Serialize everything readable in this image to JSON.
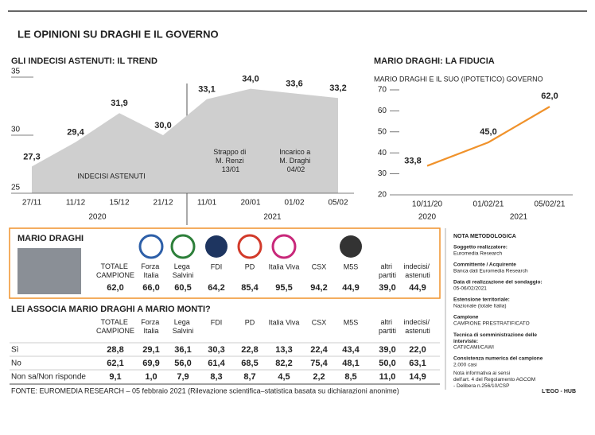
{
  "header": {
    "title": "LE OPINIONI SU DRAGHI E IL GOVERNO"
  },
  "chart_data": [
    {
      "type": "area",
      "title": "GLI INDECISI ASTENUTI: IL TREND",
      "categories": [
        "27/11",
        "11/12",
        "15/12",
        "21/12",
        "11/01",
        "20/01",
        "01/02",
        "05/02"
      ],
      "values": [
        27.3,
        29.4,
        31.9,
        30.0,
        33.1,
        34.0,
        33.6,
        33.2
      ],
      "value_labels": [
        "27,3",
        "29,4",
        "31,9",
        "30,0",
        "33,1",
        "34,0",
        "33,6",
        "33,2"
      ],
      "ylim": [
        25,
        35
      ],
      "yticks": [
        25,
        30,
        35
      ],
      "color": "#cfcfcf",
      "year_labels": [
        "2020",
        "2021"
      ],
      "annotations": [
        "INDECISI ASTENUTI",
        "Strappo di M. Renzi 13/01",
        "Incarico a M. Draghi 04/02"
      ]
    },
    {
      "type": "line",
      "title": "MARIO DRAGHI: LA FIDUCIA",
      "subtitle": "MARIO DRAGHI E IL SUO (IPOTETICO) GOVERNO",
      "categories": [
        "10/11/20",
        "01/02/21",
        "05/02/21"
      ],
      "values": [
        33.8,
        45.0,
        62.0
      ],
      "value_labels": [
        "33,8",
        "45,0",
        "62,0"
      ],
      "ylim": [
        20,
        70
      ],
      "yticks": [
        20,
        30,
        40,
        50,
        60,
        70
      ],
      "color": "#f0922b",
      "year_labels": [
        "2020",
        "2021"
      ]
    }
  ],
  "fiducia": {
    "name": "MARIO DRAGHI",
    "columns": [
      "TOTALE CAMPIONE",
      "Forza Italia",
      "Lega Salvini",
      "FDI",
      "PD",
      "Italia Viva",
      "CSX",
      "M5S",
      "altri partiti",
      "indecisi/ astenuti"
    ],
    "values": [
      "62,0",
      "66,0",
      "60,5",
      "64,2",
      "85,4",
      "95,5",
      "94,2",
      "44,9",
      "39,0",
      "44,9"
    ]
  },
  "monti": {
    "title": "LEI ASSOCIA MARIO DRAGHI A MARIO MONTI?",
    "columns": [
      "TOTALE CAMPIONE",
      "Forza Italia",
      "Lega Salvini",
      "FDI",
      "PD",
      "Italia Viva",
      "CSX",
      "M5S",
      "altri partiti",
      "indecisi/ astenuti"
    ],
    "rows": [
      {
        "label": "Sì",
        "values": [
          "28,8",
          "29,1",
          "36,1",
          "30,3",
          "22,8",
          "13,3",
          "22,4",
          "43,4",
          "39,0",
          "22,0"
        ]
      },
      {
        "label": "No",
        "values": [
          "62,1",
          "69,9",
          "56,0",
          "61,4",
          "68,5",
          "82,2",
          "75,4",
          "48,1",
          "50,0",
          "63,1"
        ]
      },
      {
        "label": "Non sa/Non risponde",
        "values": [
          "9,1",
          "1,0",
          "7,9",
          "8,3",
          "8,7",
          "4,5",
          "2,2",
          "8,5",
          "11,0",
          "14,9"
        ]
      }
    ]
  },
  "nota": {
    "title": "NOTA METODOLOGICA",
    "items": [
      {
        "label": "Soggetto realizzatore:",
        "text": "Euromedia Research"
      },
      {
        "label": "Committente / Acquirente",
        "text": "Banca dati Euromedia Research"
      },
      {
        "label": "Data di realizzazione del sondaggio:",
        "text": "05-06/02/2021"
      },
      {
        "label": "Estensione territoriale:",
        "text": "Nazionale (totale Italia)"
      },
      {
        "label": "Campione",
        "text": "CAMPIONE PRESTRATIFICATO"
      },
      {
        "label": "Tecnica di somministrazione delle interviste:",
        "text": "CATI/CAMI/CAWI"
      },
      {
        "label": "Consistenza numerica del campione",
        "text": "2.000 casi"
      }
    ],
    "footnote": "Nota informativa ai sensi dell'art. 4 del Regolamento AGCOM - Delibera n.256/10/CSP"
  },
  "footer": {
    "source": "FONTE: EUROMEDIA RESEARCH – 05 febbraio 2021 (Rilevazione scientifica–statistica basata su dichiarazioni anonime)",
    "credit": "L'EGO - HUB"
  }
}
